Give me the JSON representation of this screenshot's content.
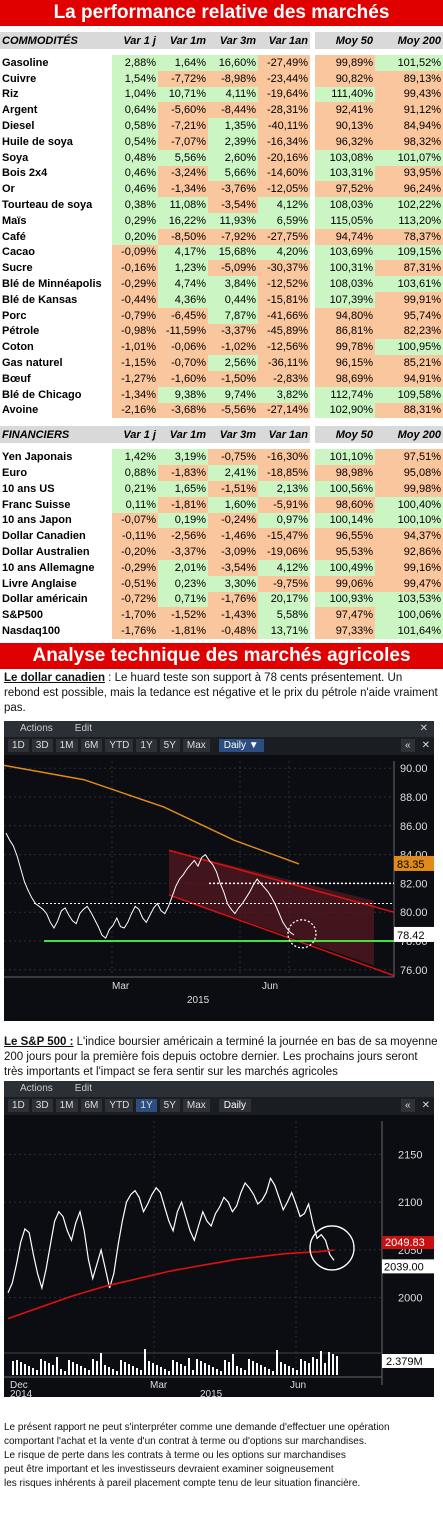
{
  "header": {
    "title": "La performance relative des marchés"
  },
  "commodities": {
    "section_label": "COMMODITÉS",
    "columns": [
      "Var 1 j",
      "Var 1m",
      "Var 3m",
      "Var 1an",
      "Moy 50",
      "Moy 200"
    ],
    "rows": [
      {
        "name": "Gasoline",
        "values": [
          "2,88%",
          "1,64%",
          "16,60%",
          "-27,49%",
          "99,89%",
          "101,52%"
        ]
      },
      {
        "name": "Cuivre",
        "values": [
          "1,54%",
          "-7,72%",
          "-8,98%",
          "-23,44%",
          "90,82%",
          "89,13%"
        ]
      },
      {
        "name": "Riz",
        "values": [
          "1,04%",
          "10,71%",
          "4,11%",
          "-19,64%",
          "111,40%",
          "99,43%"
        ]
      },
      {
        "name": "Argent",
        "values": [
          "0,64%",
          "-5,60%",
          "-8,44%",
          "-28,31%",
          "92,41%",
          "91,12%"
        ]
      },
      {
        "name": "Diesel",
        "values": [
          "0,58%",
          "-7,21%",
          "1,35%",
          "-40,11%",
          "90,13%",
          "84,94%"
        ]
      },
      {
        "name": "Huile de soya",
        "values": [
          "0,54%",
          "-7,07%",
          "2,39%",
          "-16,34%",
          "96,32%",
          "98,32%"
        ]
      },
      {
        "name": "Soya",
        "values": [
          "0,48%",
          "5,56%",
          "2,60%",
          "-20,16%",
          "103,08%",
          "101,07%"
        ]
      },
      {
        "name": "Bois 2x4",
        "values": [
          "0,46%",
          "-3,24%",
          "5,66%",
          "-14,60%",
          "103,31%",
          "93,95%"
        ]
      },
      {
        "name": "Or",
        "values": [
          "0,46%",
          "-1,34%",
          "-3,76%",
          "-12,05%",
          "97,52%",
          "96,24%"
        ]
      },
      {
        "name": "Tourteau de soya",
        "values": [
          "0,38%",
          "11,08%",
          "-3,54%",
          "4,12%",
          "108,03%",
          "102,22%"
        ]
      },
      {
        "name": "Maïs",
        "values": [
          "0,29%",
          "16,22%",
          "11,93%",
          "6,59%",
          "115,05%",
          "113,20%"
        ]
      },
      {
        "name": "Café",
        "values": [
          "0,20%",
          "-8,50%",
          "-7,92%",
          "-27,75%",
          "94,74%",
          "78,37%"
        ]
      },
      {
        "name": "Cacao",
        "values": [
          "-0,09%",
          "4,17%",
          "15,68%",
          "4,20%",
          "103,69%",
          "109,15%"
        ]
      },
      {
        "name": "Sucre",
        "values": [
          "-0,16%",
          "1,23%",
          "-5,09%",
          "-30,37%",
          "100,31%",
          "87,31%"
        ]
      },
      {
        "name": "Blé de Minnéapolis",
        "values": [
          "-0,29%",
          "4,74%",
          "3,84%",
          "-12,52%",
          "108,03%",
          "103,61%"
        ]
      },
      {
        "name": "Blé de Kansas",
        "values": [
          "-0,44%",
          "4,36%",
          "0,44%",
          "-15,81%",
          "107,39%",
          "99,91%"
        ]
      },
      {
        "name": "Porc",
        "values": [
          "-0,79%",
          "-6,45%",
          "7,87%",
          "-41,66%",
          "94,80%",
          "95,74%"
        ]
      },
      {
        "name": "Pétrole",
        "values": [
          "-0,98%",
          "-11,59%",
          "-3,37%",
          "-45,89%",
          "86,81%",
          "82,23%"
        ]
      },
      {
        "name": "Coton",
        "values": [
          "-1,01%",
          "-0,06%",
          "-1,02%",
          "-12,56%",
          "99,78%",
          "100,95%"
        ]
      },
      {
        "name": "Gas naturel",
        "values": [
          "-1,15%",
          "-0,70%",
          "2,56%",
          "-36,11%",
          "96,15%",
          "85,21%"
        ]
      },
      {
        "name": "Bœuf",
        "values": [
          "-1,27%",
          "-1,60%",
          "-1,50%",
          "-2,83%",
          "98,69%",
          "94,91%"
        ]
      },
      {
        "name": "Blé de Chicago",
        "values": [
          "-1,34%",
          "9,38%",
          "9,74%",
          "3,82%",
          "112,74%",
          "109,58%"
        ]
      },
      {
        "name": "Avoine",
        "values": [
          "-2,16%",
          "-3,68%",
          "-5,56%",
          "-27,14%",
          "102,90%",
          "88,31%"
        ]
      }
    ]
  },
  "financials": {
    "section_label": "FINANCIERS",
    "columns": [
      "Var 1 j",
      "Var 1m",
      "Var 3m",
      "Var 1an",
      "Moy 50",
      "Moy 200"
    ],
    "rows": [
      {
        "name": "Yen Japonais",
        "values": [
          "1,42%",
          "3,19%",
          "-0,75%",
          "-16,30%",
          "101,10%",
          "97,51%"
        ]
      },
      {
        "name": "Euro",
        "values": [
          "0,88%",
          "-1,83%",
          "2,41%",
          "-18,85%",
          "98,98%",
          "95,08%"
        ]
      },
      {
        "name": "10 ans US",
        "values": [
          "0,21%",
          "1,65%",
          "-1,51%",
          "2,13%",
          "100,56%",
          "99,98%"
        ]
      },
      {
        "name": "Franc Suisse",
        "values": [
          "0,11%",
          "-1,81%",
          "1,60%",
          "-5,91%",
          "98,60%",
          "100,40%"
        ]
      },
      {
        "name": "10 ans Japon",
        "values": [
          "-0,07%",
          "0,19%",
          "-0,24%",
          "0,97%",
          "100,14%",
          "100,10%"
        ]
      },
      {
        "name": "Dollar Canadien",
        "values": [
          "-0,11%",
          "-2,56%",
          "-1,46%",
          "-15,47%",
          "96,55%",
          "94,37%"
        ]
      },
      {
        "name": "Dollar Australien",
        "values": [
          "-0,20%",
          "-3,37%",
          "-3,09%",
          "-19,06%",
          "95,53%",
          "92,86%"
        ]
      },
      {
        "name": "10 ans Allemagne",
        "values": [
          "-0,29%",
          "2,01%",
          "-3,54%",
          "4,12%",
          "100,49%",
          "99,16%"
        ]
      },
      {
        "name": "Livre Anglaise",
        "values": [
          "-0,51%",
          "0,23%",
          "3,30%",
          "-9,75%",
          "99,06%",
          "99,47%"
        ]
      },
      {
        "name": "Dollar américain",
        "values": [
          "-0,72%",
          "0,71%",
          "-1,76%",
          "20,17%",
          "100,93%",
          "103,53%"
        ]
      },
      {
        "name": "S&P500",
        "values": [
          "-1,70%",
          "-1,52%",
          "-1,43%",
          "5,58%",
          "97,47%",
          "100,06%"
        ]
      },
      {
        "name": "Nasdaq100",
        "values": [
          "-1,76%",
          "-1,81%",
          "-0,48%",
          "13,71%",
          "97,33%",
          "101,64%"
        ]
      }
    ]
  },
  "technical": {
    "title": "Analyse technique des marchés agricoles",
    "cad": {
      "lead": "Le dollar canadien",
      "text": " : Le huard teste son support à 78 cents présentement. Un rebond est possible, mais la tedance est négative et le prix du pétrole n'aide vraiment pas."
    },
    "spx": {
      "lead": "Le S&P 500 :",
      "text": " L'indice boursier américain a terminé la journée en bas de sa moyenne 200 jours pour la première fois depuis octobre dernier. Les prochains jours seront très importants et l'impact se fera sentir sur les marchés agricoles"
    }
  },
  "toolbar": {
    "actions": "Actions",
    "edit": "Edit",
    "ranges": [
      "1D",
      "3D",
      "1M",
      "6M",
      "YTD",
      "1Y",
      "5Y",
      "Max"
    ],
    "daily": "Daily ▼",
    "daily_plain": "Daily",
    "back": "«"
  },
  "chart_data": [
    {
      "type": "line",
      "yticks": [
        "90.00",
        "88.00",
        "86.00",
        "84.00",
        "82.00",
        "80.00",
        "78.00",
        "76.00"
      ],
      "ylim": [
        75.5,
        90.5
      ],
      "xticks": [
        "Mar",
        "Jun"
      ],
      "xyear": "2015",
      "price_label": "78.42",
      "ma_label": "83.35",
      "support": 78.0,
      "last": 78.42,
      "ma200": 83.35,
      "series": [
        {
          "values": [
            85.5,
            85.0,
            84.6,
            83.9,
            83.0,
            82.1,
            81.5,
            81.0,
            80.6,
            80.4,
            80.2,
            79.9,
            79.3,
            78.9,
            79.4,
            80.1,
            80.3,
            79.8,
            79.4,
            79.2,
            79.9,
            80.2,
            80.4,
            80.0,
            79.5,
            79.0,
            78.4,
            78.2,
            78.8,
            79.1,
            79.6,
            79.0,
            78.9,
            79.3,
            79.9,
            80.4,
            80.2,
            79.6,
            79.3,
            79.8,
            80.3,
            80.6,
            80.1,
            79.9,
            80.4,
            81.1,
            81.8,
            82.3,
            82.6,
            83.0,
            83.3,
            83.6,
            83.2,
            83.8,
            84.0,
            83.6,
            83.3,
            82.8,
            82.0,
            81.4,
            80.6,
            80.2,
            79.9,
            80.3,
            80.6,
            81.0,
            81.4,
            81.9,
            82.3,
            82.0,
            81.7,
            81.4,
            81.0,
            80.5,
            79.9,
            79.3,
            78.9,
            78.6,
            78.42
          ]
        }
      ]
    },
    {
      "type": "line",
      "yticks": [
        "2150",
        "2100",
        "2050",
        "2000"
      ],
      "ylim": [
        1965,
        2185
      ],
      "xticks": [
        "Dec",
        "Mar",
        "Jun"
      ],
      "xyears": [
        "2014",
        "2015"
      ],
      "ma_label": "2049.83",
      "price_label": "2039.00",
      "vol_label": "2.379M",
      "series": [
        {
          "values": [
            2005,
            2015,
            2035,
            2058,
            2072,
            2068,
            2045,
            2025,
            2010,
            2030,
            2055,
            2080,
            2090,
            2085,
            2070,
            2060,
            2078,
            2090,
            2070,
            2040,
            2020,
            2035,
            2050,
            2030,
            2010,
            2025,
            2055,
            2080,
            2100,
            2108,
            2112,
            2105,
            2090,
            2098,
            2108,
            2115,
            2110,
            2095,
            2080,
            2070,
            2090,
            2100,
            2085,
            2070,
            2060,
            2075,
            2090,
            2080,
            2075,
            2088,
            2095,
            2105,
            2100,
            2090,
            2096,
            2110,
            2120,
            2115,
            2108,
            2098,
            2102,
            2110,
            2125,
            2118,
            2105,
            2092,
            2100,
            2110,
            2098,
            2085,
            2088,
            2098,
            2078,
            2062,
            2066,
            2060,
            2045,
            2039
          ]
        },
        {
          "values": [
            1978,
            1984,
            1990,
            1996,
            2002,
            2007,
            2012,
            2016,
            2020,
            2024,
            2028,
            2031,
            2034,
            2037,
            2040,
            2042,
            2044,
            2046,
            2047,
            2048,
            2049.83
          ]
        }
      ]
    }
  ]
}
